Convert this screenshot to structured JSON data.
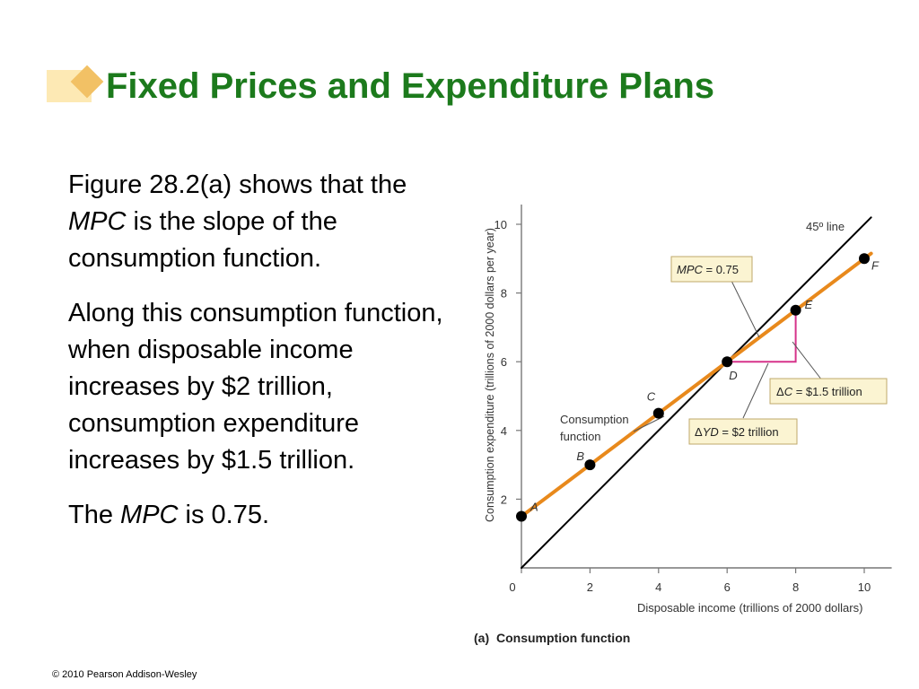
{
  "slide": {
    "title": "Fixed Prices and Expenditure Plans",
    "para1": {
      "pre": "Figure 28.2(a) shows that the ",
      "em": "MPC",
      "post": " is the slope of the consumption function."
    },
    "para2": "Along this consumption function, when disposable income increases by $2 trillion, consumption expenditure increases by $1.5 trillion.",
    "para3": {
      "pre": "The ",
      "em": "MPC",
      "post": " is 0.75."
    },
    "copyright": "© 2010 Pearson Addison-Wesley",
    "colors": {
      "title": "#1c7a1c",
      "deco_light": "#fde9b4",
      "deco_dark": "#f2c165"
    }
  },
  "chart_data": {
    "type": "line",
    "caption_prefix": "(a)",
    "caption": "Consumption function",
    "xlabel": "Disposable income (trillions of 2000 dollars)",
    "ylabel": "Consumption expenditure (trillions of 2000 dollars per year)",
    "xlim": [
      0,
      10.8
    ],
    "ylim": [
      0,
      10.6
    ],
    "xticks": [
      0,
      2,
      4,
      6,
      8,
      10
    ],
    "yticks": [
      2,
      4,
      6,
      8,
      10
    ],
    "series": [
      {
        "name": "45° line",
        "color": "#000000",
        "x": [
          0,
          10.2
        ],
        "y": [
          0,
          10.2
        ]
      },
      {
        "name": "Consumption function",
        "color": "#e8891c",
        "x": [
          0,
          10.2
        ],
        "y": [
          1.5,
          9.15
        ]
      }
    ],
    "points": [
      {
        "label": "A",
        "x": 0,
        "y": 1.5
      },
      {
        "label": "B",
        "x": 2,
        "y": 3.0
      },
      {
        "label": "C",
        "x": 4,
        "y": 4.5
      },
      {
        "label": "D",
        "x": 6,
        "y": 6.0
      },
      {
        "label": "E",
        "x": 8,
        "y": 7.5
      },
      {
        "label": "F",
        "x": 10,
        "y": 9.0
      }
    ],
    "triangle": {
      "color": "#d6338a",
      "from": {
        "x": 6,
        "y": 6
      },
      "corner": {
        "x": 8,
        "y": 6
      },
      "to": {
        "x": 8,
        "y": 7.5
      }
    },
    "annotations": {
      "mpc_box": {
        "pre": "MPC",
        "post": " = 0.75"
      },
      "delta_c_box": {
        "symbol": "Δ",
        "pre": "C",
        "post": " = $1.5 trillion"
      },
      "delta_yd_box": {
        "symbol": "Δ",
        "pre": "YD",
        "post": " = $2 trillion"
      },
      "curve_label_line1": "Consumption",
      "curve_label_line2": "function",
      "line45_label": "45º line"
    },
    "box_fill": "#fbf4d2",
    "box_stroke": "#bfa96b"
  }
}
